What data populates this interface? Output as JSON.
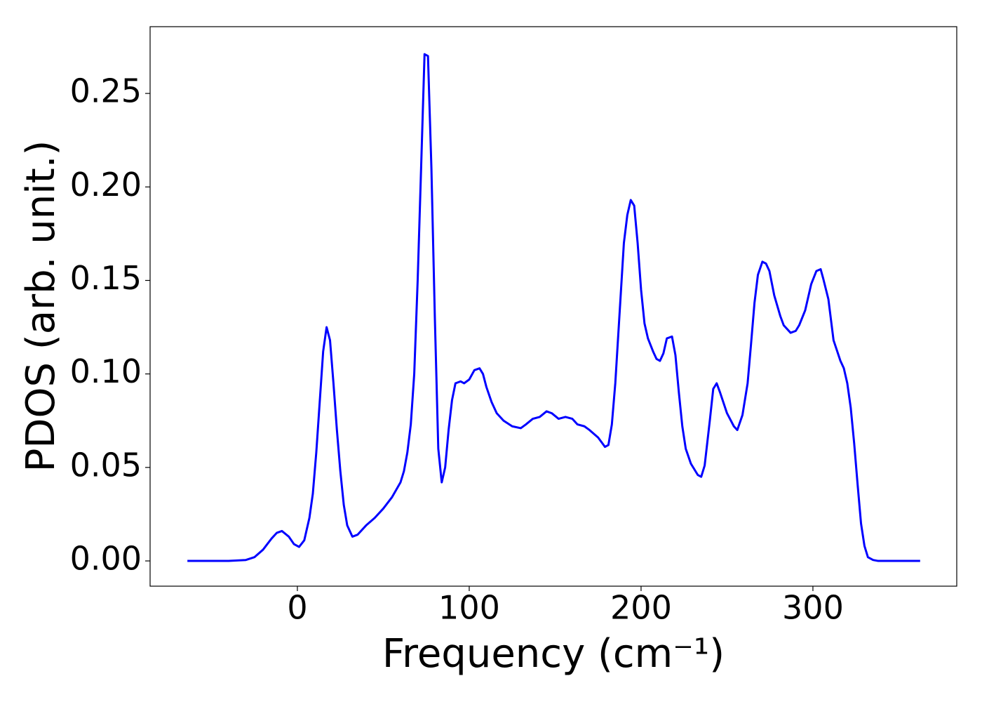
{
  "chart_data": {
    "type": "line",
    "xlabel": "Frequency (cm⁻¹)",
    "ylabel": "PDOS (arb. unit.)",
    "x": [
      -64,
      -40,
      -30,
      -25,
      -20,
      -15,
      -12,
      -9,
      -5,
      -2,
      1,
      4,
      7,
      9,
      11,
      13,
      15,
      17,
      19,
      21,
      23,
      25,
      27,
      29,
      32,
      35,
      40,
      45,
      50,
      55,
      60,
      62,
      64,
      66,
      68,
      70,
      72,
      74,
      76,
      78,
      80,
      82,
      84,
      86,
      88,
      90,
      92,
      95,
      97,
      100,
      103,
      106,
      108,
      110,
      113,
      116,
      120,
      125,
      130,
      133,
      137,
      141,
      145,
      148,
      152,
      156,
      160,
      163,
      167,
      170,
      175,
      179,
      181,
      183,
      185,
      188,
      190,
      192,
      194,
      196,
      198,
      200,
      202,
      204,
      207,
      209,
      211,
      213,
      215,
      218,
      220,
      222,
      224,
      226,
      229,
      233,
      235,
      237,
      240,
      242,
      244,
      246,
      250,
      254,
      256,
      259,
      262,
      264,
      266,
      268,
      270.6,
      272.7,
      274.7,
      277.5,
      281,
      283,
      287,
      290,
      292,
      295.5,
      299,
      302,
      304.5,
      306,
      309,
      312,
      316,
      318,
      320,
      322,
      324,
      326,
      328,
      330,
      332,
      335,
      338,
      362.4
    ],
    "series": [
      {
        "name": "PDOS",
        "color": "#0000ff",
        "values": [
          0,
          0,
          0.0005,
          0.002,
          0.006,
          0.012,
          0.015,
          0.016,
          0.013,
          0.009,
          0.0075,
          0.011,
          0.023,
          0.036,
          0.058,
          0.085,
          0.112,
          0.125,
          0.118,
          0.095,
          0.07,
          0.048,
          0.03,
          0.019,
          0.013,
          0.014,
          0.019,
          0.023,
          0.028,
          0.034,
          0.042,
          0.048,
          0.058,
          0.073,
          0.1,
          0.15,
          0.21,
          0.271,
          0.27,
          0.21,
          0.13,
          0.06,
          0.042,
          0.05,
          0.07,
          0.086,
          0.095,
          0.096,
          0.095,
          0.097,
          0.102,
          0.103,
          0.1,
          0.093,
          0.085,
          0.079,
          0.075,
          0.072,
          0.071,
          0.073,
          0.076,
          0.077,
          0.08,
          0.079,
          0.076,
          0.077,
          0.076,
          0.073,
          0.072,
          0.07,
          0.066,
          0.061,
          0.062,
          0.073,
          0.095,
          0.14,
          0.17,
          0.185,
          0.193,
          0.19,
          0.17,
          0.145,
          0.127,
          0.119,
          0.112,
          0.108,
          0.107,
          0.111,
          0.119,
          0.12,
          0.11,
          0.09,
          0.072,
          0.06,
          0.052,
          0.046,
          0.045,
          0.051,
          0.075,
          0.092,
          0.095,
          0.09,
          0.079,
          0.072,
          0.07,
          0.078,
          0.095,
          0.116,
          0.138,
          0.153,
          0.16,
          0.159,
          0.155,
          0.142,
          0.131,
          0.126,
          0.122,
          0.123,
          0.126,
          0.134,
          0.148,
          0.155,
          0.156,
          0.151,
          0.14,
          0.118,
          0.107,
          0.103,
          0.095,
          0.082,
          0.063,
          0.041,
          0.02,
          0.008,
          0.002,
          0.0005,
          0,
          0
        ]
      }
    ],
    "xlim": [
      -85.7,
      383.7
    ],
    "ylim": [
      -0.0135,
      0.2857
    ],
    "xticks": [
      0,
      100,
      200,
      300
    ],
    "yticks": [
      {
        "value": 0,
        "label": "0.00"
      },
      {
        "value": 0.05,
        "label": "0.05"
      },
      {
        "value": 0.1,
        "label": "0.10"
      },
      {
        "value": 0.15,
        "label": "0.15"
      },
      {
        "value": 0.2,
        "label": "0.20"
      },
      {
        "value": 0.25,
        "label": "0.25"
      }
    ],
    "grid": false
  }
}
